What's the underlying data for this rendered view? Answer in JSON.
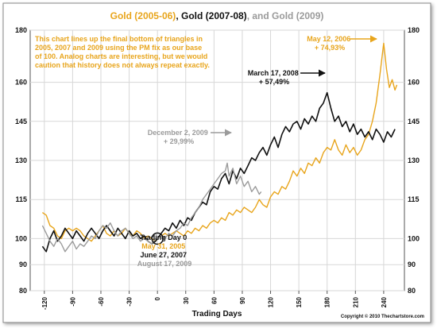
{
  "title": {
    "part1": "Gold (2005-06)",
    "sep1": ", ",
    "part2": "Gold (2007-08)",
    "sep2": ", and ",
    "part3": "Gold (2009)"
  },
  "note": [
    "This chart lines up the final bottom of triangles in",
    "2005, 2007 and 2009 using the PM fix as our base",
    "of 100.  Analog charts are interesting, but we would",
    "caution that history does not always repeat exactly."
  ],
  "colors": {
    "gold_2005": "#e8a51c",
    "gold_2007": "#111111",
    "gold_2009": "#9b9b9b",
    "grid": "#d7d7d7",
    "frame": "#555555"
  },
  "annotations": {
    "a2005": [
      "May 12, 2006",
      "+ 74,93%"
    ],
    "a2007": [
      "March 17, 2008",
      "+ 57,49%"
    ],
    "a2009": [
      "December 2, 2009",
      "+ 29,99%"
    ],
    "day0_title": "Trading Day 0",
    "day0_2005": "May 31, 2005",
    "day0_2007": "June 27, 2007",
    "day0_2009": "August 17, 2009"
  },
  "xlabel": "Trading Days",
  "copyright": "Copyright © 2010 Thechartstore.com",
  "chart_data": {
    "type": "line",
    "xlim": [
      -135,
      262
    ],
    "ylim": [
      80,
      180
    ],
    "y_ticks": [
      80,
      90,
      100,
      115,
      130,
      145,
      160,
      180
    ],
    "x_ticks": [
      -120,
      -90,
      -60,
      -30,
      0,
      30,
      60,
      90,
      120,
      150,
      180,
      210,
      240
    ],
    "grid": true,
    "series": [
      {
        "name": "Gold (2005-06)",
        "color": "#e8a51c",
        "points": [
          [
            -122,
            110
          ],
          [
            -118,
            109
          ],
          [
            -114,
            105
          ],
          [
            -110,
            104
          ],
          [
            -106,
            101
          ],
          [
            -102,
            100
          ],
          [
            -98,
            103
          ],
          [
            -94,
            104
          ],
          [
            -90,
            103
          ],
          [
            -86,
            104
          ],
          [
            -82,
            103
          ],
          [
            -78,
            101
          ],
          [
            -74,
            100
          ],
          [
            -70,
            99
          ],
          [
            -66,
            101
          ],
          [
            -62,
            103
          ],
          [
            -58,
            105
          ],
          [
            -54,
            102
          ],
          [
            -50,
            101
          ],
          [
            -46,
            103
          ],
          [
            -42,
            101
          ],
          [
            -38,
            102
          ],
          [
            -34,
            104
          ],
          [
            -30,
            102
          ],
          [
            -26,
            101
          ],
          [
            -22,
            103
          ],
          [
            -18,
            102
          ],
          [
            -14,
            100
          ],
          [
            -10,
            101
          ],
          [
            -6,
            100
          ],
          [
            -2,
            99
          ],
          [
            0,
            100
          ],
          [
            4,
            101
          ],
          [
            8,
            102
          ],
          [
            12,
            101
          ],
          [
            16,
            102
          ],
          [
            20,
            103
          ],
          [
            24,
            102
          ],
          [
            28,
            101
          ],
          [
            32,
            103
          ],
          [
            36,
            102
          ],
          [
            40,
            104
          ],
          [
            44,
            103
          ],
          [
            48,
            105
          ],
          [
            52,
            104
          ],
          [
            56,
            106
          ],
          [
            60,
            107
          ],
          [
            64,
            106
          ],
          [
            68,
            108
          ],
          [
            72,
            107
          ],
          [
            76,
            110
          ],
          [
            80,
            109
          ],
          [
            84,
            111
          ],
          [
            88,
            110
          ],
          [
            92,
            112
          ],
          [
            96,
            111
          ],
          [
            100,
            110
          ],
          [
            104,
            112
          ],
          [
            108,
            115
          ],
          [
            112,
            113
          ],
          [
            116,
            112
          ],
          [
            120,
            116
          ],
          [
            124,
            118
          ],
          [
            128,
            117
          ],
          [
            132,
            120
          ],
          [
            136,
            119
          ],
          [
            140,
            122
          ],
          [
            144,
            126
          ],
          [
            148,
            124
          ],
          [
            152,
            127
          ],
          [
            156,
            125
          ],
          [
            160,
            129
          ],
          [
            164,
            128
          ],
          [
            168,
            131
          ],
          [
            172,
            129
          ],
          [
            176,
            133
          ],
          [
            180,
            135
          ],
          [
            184,
            134
          ],
          [
            188,
            138
          ],
          [
            192,
            134
          ],
          [
            196,
            132
          ],
          [
            200,
            136
          ],
          [
            204,
            133
          ],
          [
            208,
            135
          ],
          [
            212,
            132
          ],
          [
            216,
            134
          ],
          [
            220,
            138
          ],
          [
            224,
            140
          ],
          [
            228,
            145
          ],
          [
            232,
            152
          ],
          [
            236,
            163
          ],
          [
            240,
            175
          ],
          [
            243,
            165
          ],
          [
            246,
            158
          ],
          [
            249,
            161
          ],
          [
            252,
            157
          ],
          [
            254,
            159
          ]
        ]
      },
      {
        "name": "Gold (2007-08)",
        "color": "#111111",
        "points": [
          [
            -122,
            97
          ],
          [
            -118,
            95
          ],
          [
            -114,
            100
          ],
          [
            -110,
            103
          ],
          [
            -106,
            99
          ],
          [
            -102,
            101
          ],
          [
            -98,
            104
          ],
          [
            -94,
            102
          ],
          [
            -90,
            100
          ],
          [
            -86,
            103
          ],
          [
            -82,
            101
          ],
          [
            -78,
            99
          ],
          [
            -74,
            102
          ],
          [
            -70,
            104
          ],
          [
            -66,
            102
          ],
          [
            -62,
            100
          ],
          [
            -58,
            103
          ],
          [
            -54,
            105
          ],
          [
            -50,
            103
          ],
          [
            -46,
            101
          ],
          [
            -42,
            104
          ],
          [
            -38,
            102
          ],
          [
            -34,
            100
          ],
          [
            -30,
            103
          ],
          [
            -26,
            101
          ],
          [
            -22,
            102
          ],
          [
            -18,
            100
          ],
          [
            -14,
            101
          ],
          [
            -10,
            99
          ],
          [
            -6,
            98
          ],
          [
            -2,
            99
          ],
          [
            0,
            100
          ],
          [
            4,
            102
          ],
          [
            8,
            104
          ],
          [
            12,
            103
          ],
          [
            16,
            106
          ],
          [
            20,
            104
          ],
          [
            24,
            107
          ],
          [
            28,
            105
          ],
          [
            32,
            108
          ],
          [
            36,
            107
          ],
          [
            40,
            110
          ],
          [
            44,
            112
          ],
          [
            48,
            114
          ],
          [
            52,
            113
          ],
          [
            56,
            118
          ],
          [
            60,
            120
          ],
          [
            64,
            119
          ],
          [
            68,
            123
          ],
          [
            72,
            125
          ],
          [
            76,
            121
          ],
          [
            80,
            126
          ],
          [
            84,
            123
          ],
          [
            88,
            127
          ],
          [
            92,
            125
          ],
          [
            96,
            128
          ],
          [
            100,
            131
          ],
          [
            104,
            130
          ],
          [
            108,
            133
          ],
          [
            112,
            135
          ],
          [
            116,
            132
          ],
          [
            120,
            136
          ],
          [
            124,
            139
          ],
          [
            128,
            135
          ],
          [
            132,
            140
          ],
          [
            136,
            143
          ],
          [
            140,
            141
          ],
          [
            144,
            144
          ],
          [
            148,
            145
          ],
          [
            152,
            142
          ],
          [
            156,
            146
          ],
          [
            160,
            144
          ],
          [
            164,
            147
          ],
          [
            168,
            145
          ],
          [
            172,
            150
          ],
          [
            176,
            152
          ],
          [
            180,
            156
          ],
          [
            184,
            150
          ],
          [
            188,
            145
          ],
          [
            192,
            147
          ],
          [
            196,
            143
          ],
          [
            200,
            145
          ],
          [
            204,
            141
          ],
          [
            208,
            144
          ],
          [
            212,
            140
          ],
          [
            216,
            142
          ],
          [
            220,
            139
          ],
          [
            224,
            141
          ],
          [
            228,
            138
          ],
          [
            232,
            142
          ],
          [
            236,
            140
          ],
          [
            240,
            137
          ],
          [
            244,
            141
          ],
          [
            248,
            139
          ],
          [
            252,
            142
          ]
        ]
      },
      {
        "name": "Gold (2009)",
        "color": "#9b9b9b",
        "points": [
          [
            -122,
            105
          ],
          [
            -118,
            102
          ],
          [
            -114,
            99
          ],
          [
            -110,
            97
          ],
          [
            -106,
            100
          ],
          [
            -102,
            98
          ],
          [
            -98,
            95
          ],
          [
            -94,
            97
          ],
          [
            -90,
            99
          ],
          [
            -86,
            96
          ],
          [
            -82,
            98
          ],
          [
            -78,
            97
          ],
          [
            -74,
            99
          ],
          [
            -70,
            101
          ],
          [
            -66,
            100
          ],
          [
            -62,
            103
          ],
          [
            -58,
            105
          ],
          [
            -54,
            104
          ],
          [
            -50,
            106
          ],
          [
            -46,
            103
          ],
          [
            -42,
            101
          ],
          [
            -38,
            103
          ],
          [
            -34,
            104
          ],
          [
            -30,
            102
          ],
          [
            -26,
            100
          ],
          [
            -22,
            101
          ],
          [
            -18,
            99
          ],
          [
            -14,
            100
          ],
          [
            -10,
            99
          ],
          [
            -6,
            98
          ],
          [
            -2,
            100
          ],
          [
            0,
            100
          ],
          [
            4,
            101
          ],
          [
            8,
            100
          ],
          [
            12,
            102
          ],
          [
            16,
            101
          ],
          [
            20,
            103
          ],
          [
            24,
            104
          ],
          [
            28,
            106
          ],
          [
            32,
            105
          ],
          [
            36,
            108
          ],
          [
            40,
            110
          ],
          [
            44,
            112
          ],
          [
            48,
            115
          ],
          [
            52,
            117
          ],
          [
            56,
            119
          ],
          [
            60,
            121
          ],
          [
            64,
            123
          ],
          [
            68,
            125
          ],
          [
            72,
            126
          ],
          [
            74,
            129
          ],
          [
            76,
            124
          ],
          [
            80,
            127
          ],
          [
            84,
            121
          ],
          [
            88,
            124
          ],
          [
            92,
            120
          ],
          [
            96,
            122
          ],
          [
            100,
            118
          ],
          [
            104,
            120
          ],
          [
            108,
            117
          ],
          [
            110,
            118
          ]
        ]
      }
    ]
  }
}
